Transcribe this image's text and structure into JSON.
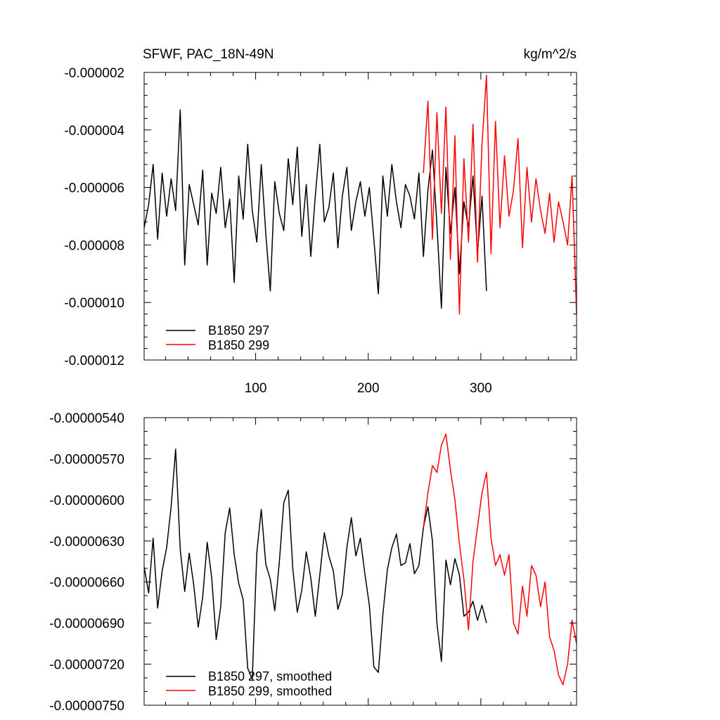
{
  "chart_data": [
    {
      "type": "line",
      "title": "SFWF, PAC_18N-49N",
      "units": "kg/m^2/s",
      "xlim": [
        1,
        385
      ],
      "ylim": [
        -1.2e-05,
        -2e-06
      ],
      "yticks": [
        -2e-06,
        -4e-06,
        -6e-06,
        -8e-06,
        -1e-05,
        -1.2e-05
      ],
      "ytick_labels": [
        "-0.000002",
        "-0.000004",
        "-0.000006",
        "-0.000008",
        "-0.000010",
        "-0.000012"
      ],
      "xticks": [
        100,
        200,
        300
      ],
      "xtick_labels": [
        "100",
        "200",
        "300"
      ],
      "legend_position": "bottom-left",
      "series": [
        {
          "name": "B1850 297",
          "color": "#000000",
          "x": [
            1,
            5,
            9,
            13,
            17,
            21,
            25,
            29,
            33,
            37,
            41,
            45,
            49,
            53,
            57,
            61,
            65,
            69,
            73,
            77,
            81,
            85,
            89,
            93,
            97,
            101,
            105,
            109,
            113,
            117,
            121,
            125,
            129,
            133,
            137,
            141,
            145,
            149,
            153,
            157,
            161,
            165,
            169,
            173,
            177,
            181,
            185,
            189,
            193,
            197,
            201,
            205,
            209,
            213,
            217,
            221,
            225,
            229,
            233,
            237,
            241,
            245,
            249,
            253,
            257,
            261,
            265,
            269,
            273,
            277,
            281,
            285,
            289,
            293,
            297,
            301,
            305
          ],
          "values": [
            -7.4e-06,
            -6.6e-06,
            -5.2e-06,
            -7.8e-06,
            -5.5e-06,
            -7e-06,
            -5.7e-06,
            -6.8e-06,
            -3.3e-06,
            -8.7e-06,
            -5.9e-06,
            -6.6e-06,
            -7.3e-06,
            -5.4e-06,
            -8.7e-06,
            -6.2e-06,
            -6.9e-06,
            -5.3e-06,
            -7.4e-06,
            -6.4e-06,
            -9.3e-06,
            -5.6e-06,
            -7.1e-06,
            -4.5e-06,
            -6.8e-06,
            -7.9e-06,
            -5.2e-06,
            -7.6e-06,
            -9.6e-06,
            -5.8e-06,
            -6.9e-06,
            -7.5e-06,
            -5e-06,
            -6.6e-06,
            -4.6e-06,
            -7.7e-06,
            -5.9e-06,
            -8.4e-06,
            -6.3e-06,
            -4.5e-06,
            -7.2e-06,
            -6.7e-06,
            -5.5e-06,
            -8.1e-06,
            -6.3e-06,
            -5.3e-06,
            -7.5e-06,
            -6.5e-06,
            -5.8e-06,
            -7e-06,
            -6e-06,
            -7.8e-06,
            -9.7e-06,
            -5.6e-06,
            -7e-06,
            -5.2e-06,
            -6.5e-06,
            -7.4e-06,
            -5.9e-06,
            -6.3e-06,
            -7.1e-06,
            -5.5e-06,
            -8.4e-06,
            -6.1e-06,
            -4.7e-06,
            -7.3e-06,
            -1.02e-05,
            -5.3e-06,
            -7.6e-06,
            -6e-06,
            -9e-06,
            -6.5e-06,
            -7.4e-06,
            -5.6e-06,
            -8.3e-06,
            -6.3e-06,
            -9.6e-06
          ]
        },
        {
          "name": "B1850 299",
          "color": "#ff0000",
          "x": [
            249,
            253,
            257,
            261,
            265,
            269,
            273,
            277,
            281,
            285,
            289,
            293,
            297,
            301,
            305,
            309,
            313,
            317,
            321,
            325,
            329,
            333,
            337,
            341,
            345,
            349,
            353,
            357,
            361,
            365,
            369,
            373,
            377,
            381,
            385
          ],
          "values": [
            -5.5e-06,
            -3e-06,
            -7.8e-06,
            -3.4e-06,
            -6.9e-06,
            -3.2e-06,
            -8.5e-06,
            -4.2e-06,
            -1.04e-05,
            -5e-06,
            -7.9e-06,
            -3.8e-06,
            -8.6e-06,
            -4.5e-06,
            -2.1e-06,
            -8.3e-06,
            -3.7e-06,
            -7.4e-06,
            -4.9e-06,
            -7e-06,
            -6.1e-06,
            -4.3e-06,
            -8.1e-06,
            -5.3e-06,
            -7.2e-06,
            -5.7e-06,
            -6.8e-06,
            -7.6e-06,
            -6.2e-06,
            -7.9e-06,
            -6.5e-06,
            -7.2e-06,
            -8e-06,
            -5.6e-06,
            -1.04e-05
          ]
        }
      ]
    },
    {
      "type": "line",
      "xlim": [
        1,
        385
      ],
      "ylim": [
        -7.5e-06,
        -5.4e-06
      ],
      "yticks": [
        -5.4e-06,
        -5.7e-06,
        -6e-06,
        -6.3e-06,
        -6.6e-06,
        -6.9e-06,
        -7.2e-06,
        -7.5e-06
      ],
      "ytick_labels": [
        "-0.00000540",
        "-0.00000570",
        "-0.00000600",
        "-0.00000630",
        "-0.00000660",
        "-0.00000690",
        "-0.00000720",
        "-0.00000750"
      ],
      "legend_position": "bottom-left",
      "series": [
        {
          "name": "B1850 297, smoothed",
          "color": "#000000",
          "x": [
            1,
            5,
            9,
            13,
            17,
            21,
            25,
            29,
            33,
            37,
            41,
            45,
            49,
            53,
            57,
            61,
            65,
            69,
            73,
            77,
            81,
            85,
            89,
            93,
            97,
            101,
            105,
            109,
            113,
            117,
            121,
            125,
            129,
            133,
            137,
            141,
            145,
            149,
            153,
            157,
            161,
            165,
            169,
            173,
            177,
            181,
            185,
            189,
            193,
            197,
            201,
            205,
            209,
            213,
            217,
            221,
            225,
            229,
            233,
            237,
            241,
            245,
            249,
            253,
            257,
            261,
            265,
            269,
            273,
            277,
            281,
            285,
            289,
            293,
            297,
            301,
            305
          ],
          "values": [
            -6.49e-06,
            -6.68e-06,
            -6.28e-06,
            -6.79e-06,
            -6.52e-06,
            -6.35e-06,
            -6.05e-06,
            -5.63e-06,
            -6.36e-06,
            -6.67e-06,
            -6.39e-06,
            -6.62e-06,
            -6.93e-06,
            -6.71e-06,
            -6.31e-06,
            -6.57e-06,
            -7.02e-06,
            -6.78e-06,
            -6.24e-06,
            -6.06e-06,
            -6.4e-06,
            -6.61e-06,
            -6.73e-06,
            -7.23e-06,
            -7.31e-06,
            -6.39e-06,
            -6.07e-06,
            -6.47e-06,
            -6.58e-06,
            -6.81e-06,
            -6.46e-06,
            -6.02e-06,
            -5.93e-06,
            -6.5e-06,
            -6.82e-06,
            -6.66e-06,
            -6.38e-06,
            -6.57e-06,
            -6.85e-06,
            -6.55e-06,
            -6.24e-06,
            -6.41e-06,
            -6.52e-06,
            -6.8e-06,
            -6.69e-06,
            -6.35e-06,
            -6.13e-06,
            -6.41e-06,
            -6.28e-06,
            -6.54e-06,
            -6.77e-06,
            -7.22e-06,
            -7.26e-06,
            -6.84e-06,
            -6.51e-06,
            -6.35e-06,
            -6.25e-06,
            -6.48e-06,
            -6.46e-06,
            -6.32e-06,
            -6.54e-06,
            -6.48e-06,
            -6.2e-06,
            -6.05e-06,
            -6.3e-06,
            -6.9e-06,
            -7.18e-06,
            -6.44e-06,
            -6.62e-06,
            -6.43e-06,
            -6.55e-06,
            -6.85e-06,
            -6.82e-06,
            -6.74e-06,
            -6.88e-06,
            -6.77e-06,
            -6.9e-06
          ]
        },
        {
          "name": "B1850 299, smoothed",
          "color": "#ff0000",
          "x": [
            249,
            253,
            257,
            261,
            265,
            269,
            273,
            277,
            281,
            285,
            289,
            293,
            297,
            301,
            305,
            309,
            313,
            317,
            321,
            325,
            329,
            333,
            337,
            341,
            345,
            349,
            353,
            357,
            361,
            365,
            369,
            373,
            377,
            381,
            385
          ],
          "values": [
            -6.2e-06,
            -5.95e-06,
            -5.75e-06,
            -5.8e-06,
            -5.6e-06,
            -5.52e-06,
            -5.78e-06,
            -6e-06,
            -6.32e-06,
            -6.58e-06,
            -6.95e-06,
            -6.45e-06,
            -6.2e-06,
            -5.95e-06,
            -5.8e-06,
            -6.28e-06,
            -6.48e-06,
            -6.4e-06,
            -6.55e-06,
            -6.4e-06,
            -6.9e-06,
            -6.98e-06,
            -6.63e-06,
            -6.85e-06,
            -6.48e-06,
            -6.55e-06,
            -6.78e-06,
            -6.6e-06,
            -7e-06,
            -7.1e-06,
            -7.28e-06,
            -7.35e-06,
            -7.2e-06,
            -6.88e-06,
            -7.05e-06
          ]
        }
      ]
    }
  ]
}
